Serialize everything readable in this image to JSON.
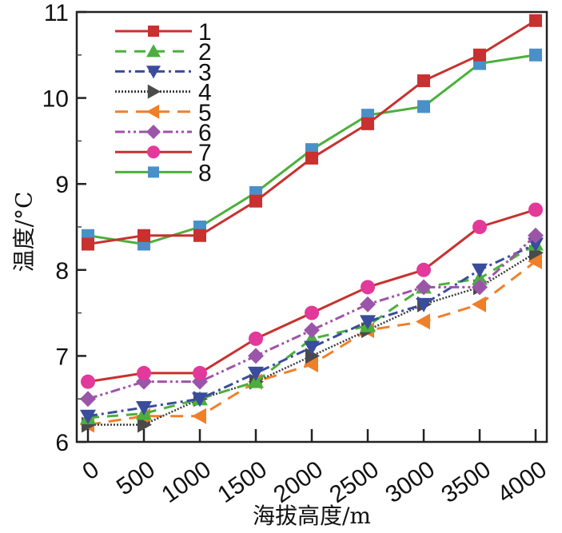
{
  "chart_data": {
    "type": "line",
    "title": "",
    "xlabel": "海拔高度/m",
    "ylabel": "温度/°C",
    "x": [
      0,
      500,
      1000,
      1500,
      2000,
      2500,
      3000,
      3500,
      4000
    ],
    "x_tick_labels": [
      "0",
      "500",
      "1000",
      "1500",
      "2000",
      "2500",
      "3000",
      "3500",
      "4000"
    ],
    "ylim": [
      6,
      11
    ],
    "y_ticks": [
      6,
      7,
      8,
      9,
      10,
      11
    ],
    "y_tick_labels": [
      "6",
      "7",
      "8",
      "9",
      "10",
      "11"
    ],
    "y_minor_ticks": [
      6.5,
      7.5,
      8.5,
      9.5,
      10.5
    ],
    "grid": false,
    "legend_position": "top-left",
    "series": [
      {
        "name": "1",
        "color": "#c8312f",
        "marker_color": "#c8312f",
        "dash": "solid",
        "marker": "square",
        "values": [
          8.3,
          8.4,
          8.4,
          8.8,
          9.3,
          9.7,
          10.2,
          10.5,
          10.9
        ]
      },
      {
        "name": "2",
        "color": "#4caf3c",
        "marker_color": "#4caf3c",
        "dash": "dash",
        "marker": "triangle-up",
        "values": [
          6.28,
          6.33,
          6.5,
          6.7,
          7.2,
          7.35,
          7.8,
          7.9,
          8.3
        ]
      },
      {
        "name": "3",
        "color": "#3a4c9c",
        "marker_color": "#3a4c9c",
        "dash": "dashdot",
        "marker": "triangle-down",
        "values": [
          6.3,
          6.4,
          6.5,
          6.8,
          7.1,
          7.4,
          7.6,
          8.0,
          8.3
        ]
      },
      {
        "name": "4",
        "color": "#3a3a3a",
        "marker_color": "#4a4a4a",
        "dash": "dot",
        "marker": "triangle-right",
        "values": [
          6.2,
          6.2,
          6.5,
          6.7,
          7.0,
          7.3,
          7.6,
          7.8,
          8.2
        ]
      },
      {
        "name": "5",
        "color": "#f07f2a",
        "marker_color": "#f07f2a",
        "dash": "longdash",
        "marker": "triangle-left",
        "values": [
          6.2,
          6.3,
          6.3,
          6.7,
          6.9,
          7.3,
          7.4,
          7.6,
          8.1
        ]
      },
      {
        "name": "6",
        "color": "#a152a8",
        "marker_color": "#9b55a8",
        "dash": "dashdotdot",
        "marker": "diamond",
        "values": [
          6.5,
          6.7,
          6.7,
          7.0,
          7.3,
          7.6,
          7.8,
          7.8,
          8.4
        ]
      },
      {
        "name": "7",
        "color": "#c8312f",
        "marker_color": "#e2399a",
        "dash": "solid",
        "marker": "circle",
        "values": [
          6.7,
          6.8,
          6.8,
          7.2,
          7.5,
          7.8,
          8.0,
          8.5,
          8.7
        ]
      },
      {
        "name": "8",
        "color": "#4caf3c",
        "marker_color": "#4a90c8",
        "dash": "solid",
        "marker": "square",
        "values": [
          8.4,
          8.3,
          8.5,
          8.9,
          9.4,
          9.8,
          9.9,
          10.4,
          10.5
        ]
      }
    ]
  }
}
